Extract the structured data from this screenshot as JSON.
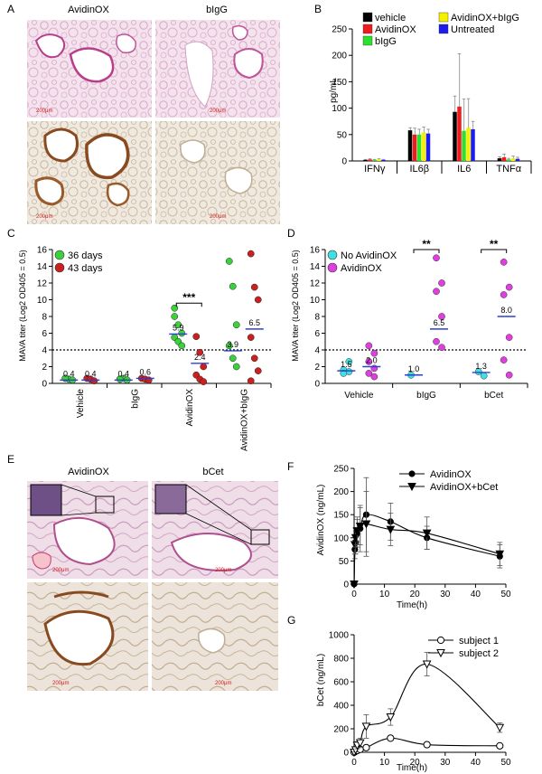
{
  "panels": {
    "A": {
      "label": "A",
      "col_titles": [
        "AvidinOX",
        "bIgG"
      ],
      "scale_labels": [
        "200μm",
        "200μm",
        "200μm",
        "200μm"
      ]
    },
    "E": {
      "label": "E",
      "col_titles": [
        "AvidinOX",
        "bCet"
      ],
      "scale_labels": [
        "200μm",
        "200μm",
        "200μm",
        "200μm"
      ]
    }
  },
  "chart_data": [
    {
      "id": "B",
      "label": "B",
      "type": "bar",
      "ylabel": "pg/mL",
      "ylim": [
        0,
        250
      ],
      "yticks": [
        0,
        50,
        100,
        150,
        200,
        250
      ],
      "categories": [
        "IFNγ",
        "IL6β",
        "IL6",
        "TNFα"
      ],
      "series": [
        {
          "name": "vehicle",
          "color": "#000000",
          "values": [
            2,
            58,
            93,
            5
          ],
          "errors": [
            1,
            5,
            30,
            3
          ]
        },
        {
          "name": "AvidinOX",
          "color": "#ee1c1c",
          "values": [
            3,
            50,
            103,
            7
          ],
          "errors": [
            1,
            12,
            100,
            6
          ]
        },
        {
          "name": "bIgG",
          "color": "#2ee02e",
          "values": [
            2,
            50,
            57,
            3
          ],
          "errors": [
            1,
            10,
            60,
            2
          ]
        },
        {
          "name": "AvidinOX+bIgG",
          "color": "#f5f000",
          "values": [
            3,
            54,
            63,
            5
          ],
          "errors": [
            1,
            10,
            55,
            4
          ]
        },
        {
          "name": "Untreated",
          "color": "#1c1cee",
          "values": [
            2,
            52,
            60,
            4
          ],
          "errors": [
            1,
            8,
            15,
            3
          ]
        }
      ],
      "legend": "top"
    },
    {
      "id": "C",
      "label": "C",
      "type": "scatter",
      "ylabel": "MAVA titer (Log2 OD405 = 0.5)",
      "ylim": [
        0,
        16
      ],
      "yticks": [
        0,
        2,
        4,
        6,
        8,
        10,
        12,
        14,
        16
      ],
      "threshold": 4,
      "groups": [
        "Vehicle",
        "bIgG",
        "AvidinOX",
        "AvidinOX+bIgG"
      ],
      "series": [
        {
          "name": "36 days",
          "color": "#3ad13a",
          "points": [
            [
              [
                0.6,
                0.5,
                0.4,
                0.6
              ]
            ],
            [
              [
                0.5,
                0.6,
                0.4,
                0.5
              ]
            ],
            [
              [
                9.0,
                7.0,
                6.0,
                5.5,
                5.0,
                4.5,
                8.0
              ]
            ],
            [
              [
                14.6,
                11.6,
                7.0,
                4.5,
                3.0,
                2.0
              ]
            ]
          ]
        },
        {
          "name": "43 days",
          "color": "#cc1f1f",
          "points": [
            [
              [
                0.6,
                0.5,
                0.3
              ]
            ],
            [
              [
                0.6,
                0.5,
                0.4
              ]
            ],
            [
              [
                5.6,
                3.7,
                2.0,
                1.0,
                0.5,
                0.2
              ]
            ],
            [
              [
                15.5,
                11.5,
                10.0,
                5.5,
                3.0,
                1.5,
                0.3
              ]
            ]
          ]
        }
      ],
      "means": [
        "0.4",
        "0.4",
        "0.4",
        "0.6",
        "5.9",
        "2.4",
        "3.9",
        "6.5"
      ],
      "significance": "***",
      "legend": "top-left"
    },
    {
      "id": "D",
      "label": "D",
      "type": "scatter",
      "ylabel": "MAVA titer (Log2 OD405 = 0.5)",
      "ylim": [
        0,
        16
      ],
      "yticks": [
        0,
        2,
        4,
        6,
        8,
        10,
        12,
        14,
        16
      ],
      "threshold": 4,
      "groups": [
        "Vehicle",
        "bIgG",
        "bCet"
      ],
      "series": [
        {
          "name": "No AvidinOX",
          "color": "#3ee0e0"
        },
        {
          "name": "AvidinOX",
          "color": "#e13ee1"
        }
      ],
      "means": [
        "1.5",
        "2.0",
        "1.0",
        "6.5",
        "1.3",
        "8.0"
      ],
      "significance": [
        "**",
        "**"
      ],
      "legend": "top-left"
    },
    {
      "id": "F",
      "label": "F",
      "type": "line",
      "xlabel": "Time(h)",
      "ylabel": "AvidinOX (ng/mL)",
      "xlim": [
        0,
        50
      ],
      "xticks": [
        0,
        10,
        20,
        30,
        40,
        50
      ],
      "ylim": [
        0,
        250
      ],
      "yticks": [
        0,
        50,
        100,
        150,
        200,
        250
      ],
      "series": [
        {
          "name": "AvidinOX",
          "marker": "circle",
          "x": [
            0,
            0.25,
            0.5,
            1,
            2,
            4,
            12,
            24,
            48
          ],
          "y": [
            0,
            75,
            90,
            110,
            120,
            150,
            135,
            100,
            60
          ],
          "err": [
            0,
            20,
            25,
            30,
            50,
            80,
            40,
            25,
            25
          ]
        },
        {
          "name": "AvidinOX+bCet",
          "marker": "triangle-down",
          "x": [
            0,
            0.25,
            0.5,
            1,
            2,
            4,
            12,
            24,
            48
          ],
          "y": [
            0,
            85,
            100,
            115,
            125,
            130,
            118,
            110,
            65
          ],
          "err": [
            0,
            20,
            20,
            30,
            40,
            70,
            35,
            35,
            25
          ]
        }
      ],
      "legend": "top-right"
    },
    {
      "id": "G",
      "label": "G",
      "type": "line",
      "xlabel": "Time(h)",
      "ylabel": "bCet (ng/mL)",
      "xlim": [
        0,
        50
      ],
      "xticks": [
        0,
        10,
        20,
        30,
        40,
        50
      ],
      "ylim": [
        0,
        1000
      ],
      "yticks": [
        0,
        200,
        400,
        600,
        800,
        1000
      ],
      "series": [
        {
          "name": "subject 1",
          "marker": "circle-open",
          "x": [
            0,
            0.5,
            1,
            2,
            4,
            12,
            24,
            48
          ],
          "y": [
            0,
            10,
            15,
            25,
            40,
            120,
            65,
            55
          ],
          "err": [
            0,
            5,
            5,
            10,
            10,
            20,
            10,
            10
          ]
        },
        {
          "name": "subject 2",
          "marker": "triangle-down-open",
          "x": [
            0,
            0.5,
            1,
            2,
            4,
            12,
            24,
            48
          ],
          "y": [
            0,
            20,
            60,
            80,
            220,
            300,
            750,
            210
          ],
          "err": [
            0,
            15,
            30,
            40,
            100,
            70,
            100,
            40
          ]
        }
      ],
      "legend": "top-right"
    }
  ]
}
